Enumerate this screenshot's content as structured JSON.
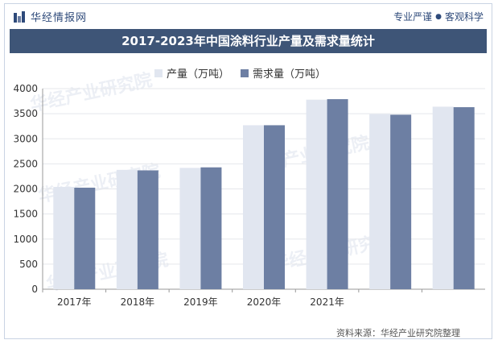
{
  "brand": {
    "name": "华经情报网",
    "icon": "bar-chart-logo-icon"
  },
  "slogan": {
    "left": "专业严谨",
    "separator": "●",
    "right": "客观科学"
  },
  "watermark": {
    "text": "华经产业研究院"
  },
  "source": {
    "text": "资料来源：华经产业研究院整理"
  },
  "colors": {
    "production": "#e1e6f0",
    "demand": "#6d7fa3",
    "title_bg": "#3e5577",
    "grid": "#e5e7eb"
  },
  "chart_data": {
    "type": "bar",
    "title": "2017-2023年中国涂料行业产量及需求量统计",
    "categories": [
      "2017年",
      "2018年",
      "2019年",
      "2020年",
      "2021年",
      "",
      ""
    ],
    "series": [
      {
        "name": "产量（万吨）",
        "values": [
          2040,
          2380,
          2420,
          3270,
          3780,
          3490,
          3640
        ]
      },
      {
        "name": "需求量（万吨）",
        "values": [
          2025,
          2370,
          2430,
          3270,
          3790,
          3480,
          3630
        ]
      }
    ],
    "ylim": [
      0,
      4000
    ],
    "yticks": [
      0,
      500,
      1000,
      1500,
      2000,
      2500,
      3000,
      3500,
      4000
    ],
    "xlabel": "",
    "ylabel": "",
    "grid": true,
    "legend": "top-center"
  }
}
